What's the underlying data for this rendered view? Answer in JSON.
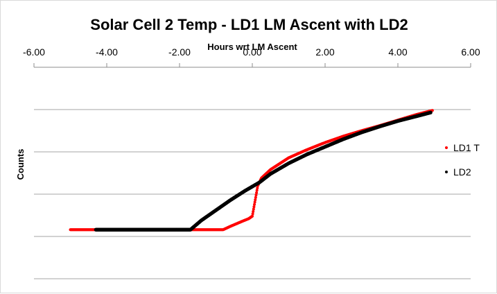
{
  "chart_data": {
    "type": "scatter",
    "title": "Solar Cell 2 Temp - LD1 LM Ascent with LD2",
    "xlabel": "Hours wrt LM Ascent",
    "ylabel": "Counts",
    "xlim": [
      -6,
      6
    ],
    "x_ticks": [
      "-6.00",
      "-4.00",
      "-2.00",
      "0.00",
      "2.00",
      "4.00",
      "6.00"
    ],
    "x_axis_position": "top",
    "y_axis_labels_shown": false,
    "grid": "horizontal",
    "ylim": [
      0,
      5
    ],
    "legend": {
      "placement": "right"
    },
    "colors": {
      "LD1 T": "#ff0000",
      "LD2": "#000000",
      "grid": "#a6a6a6"
    },
    "series": [
      {
        "name": "LD1 T",
        "points": [
          [
            -5.0,
            1.16
          ],
          [
            -4.5,
            1.16
          ],
          [
            -3.5,
            1.16
          ],
          [
            -2.5,
            1.16
          ],
          [
            -1.75,
            1.16
          ],
          [
            -0.8,
            1.16
          ],
          [
            -0.6,
            1.24
          ],
          [
            -0.3,
            1.35
          ],
          [
            -0.1,
            1.42
          ],
          [
            0.0,
            1.48
          ],
          [
            0.15,
            2.2
          ],
          [
            0.25,
            2.38
          ],
          [
            0.5,
            2.58
          ],
          [
            1.0,
            2.86
          ],
          [
            1.5,
            3.05
          ],
          [
            2.0,
            3.22
          ],
          [
            2.5,
            3.37
          ],
          [
            3.0,
            3.5
          ],
          [
            3.5,
            3.62
          ],
          [
            4.0,
            3.75
          ],
          [
            4.5,
            3.88
          ],
          [
            4.95,
            3.98
          ]
        ]
      },
      {
        "name": "LD2",
        "points": [
          [
            -4.3,
            1.16
          ],
          [
            -3.5,
            1.16
          ],
          [
            -2.5,
            1.16
          ],
          [
            -1.7,
            1.16
          ],
          [
            -1.4,
            1.38
          ],
          [
            -1.0,
            1.62
          ],
          [
            -0.6,
            1.86
          ],
          [
            -0.2,
            2.08
          ],
          [
            0.2,
            2.28
          ],
          [
            0.5,
            2.48
          ],
          [
            1.0,
            2.73
          ],
          [
            1.5,
            2.94
          ],
          [
            2.0,
            3.12
          ],
          [
            2.5,
            3.3
          ],
          [
            3.0,
            3.46
          ],
          [
            3.5,
            3.6
          ],
          [
            4.0,
            3.73
          ],
          [
            4.5,
            3.84
          ],
          [
            4.9,
            3.93
          ]
        ]
      }
    ]
  }
}
